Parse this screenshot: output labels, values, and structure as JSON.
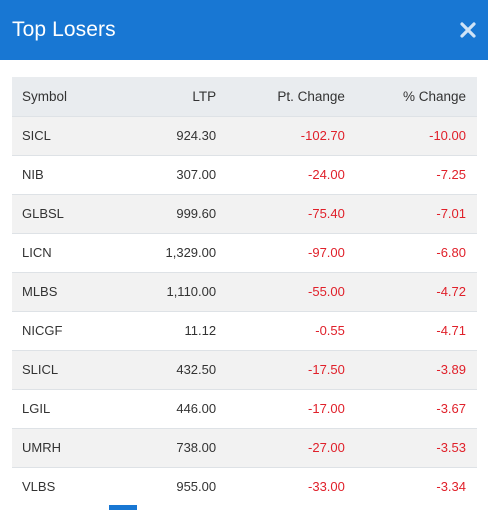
{
  "modal": {
    "title": "Top Losers",
    "close_icon": "close-icon"
  },
  "colors": {
    "header_bg": "#1877d3",
    "negative": "#e0202a",
    "table_header_bg": "#e9ecef",
    "row_stripe": "#f2f2f2"
  },
  "table": {
    "columns": [
      "Symbol",
      "LTP",
      "Pt. Change",
      "% Change"
    ],
    "rows": [
      {
        "symbol": "SICL",
        "ltp": "924.30",
        "pt_change": "-102.70",
        "pct_change": "-10.00"
      },
      {
        "symbol": "NIB",
        "ltp": "307.00",
        "pt_change": "-24.00",
        "pct_change": "-7.25"
      },
      {
        "symbol": "GLBSL",
        "ltp": "999.60",
        "pt_change": "-75.40",
        "pct_change": "-7.01"
      },
      {
        "symbol": "LICN",
        "ltp": "1,329.00",
        "pt_change": "-97.00",
        "pct_change": "-6.80"
      },
      {
        "symbol": "MLBS",
        "ltp": "1,110.00",
        "pt_change": "-55.00",
        "pct_change": "-4.72"
      },
      {
        "symbol": "NICGF",
        "ltp": "11.12",
        "pt_change": "-0.55",
        "pct_change": "-4.71"
      },
      {
        "symbol": "SLICL",
        "ltp": "432.50",
        "pt_change": "-17.50",
        "pct_change": "-3.89"
      },
      {
        "symbol": "LGIL",
        "ltp": "446.00",
        "pt_change": "-17.00",
        "pct_change": "-3.67"
      },
      {
        "symbol": "UMRH",
        "ltp": "738.00",
        "pt_change": "-27.00",
        "pct_change": "-3.53"
      },
      {
        "symbol": "VLBS",
        "ltp": "955.00",
        "pt_change": "-33.00",
        "pct_change": "-3.34"
      }
    ]
  }
}
